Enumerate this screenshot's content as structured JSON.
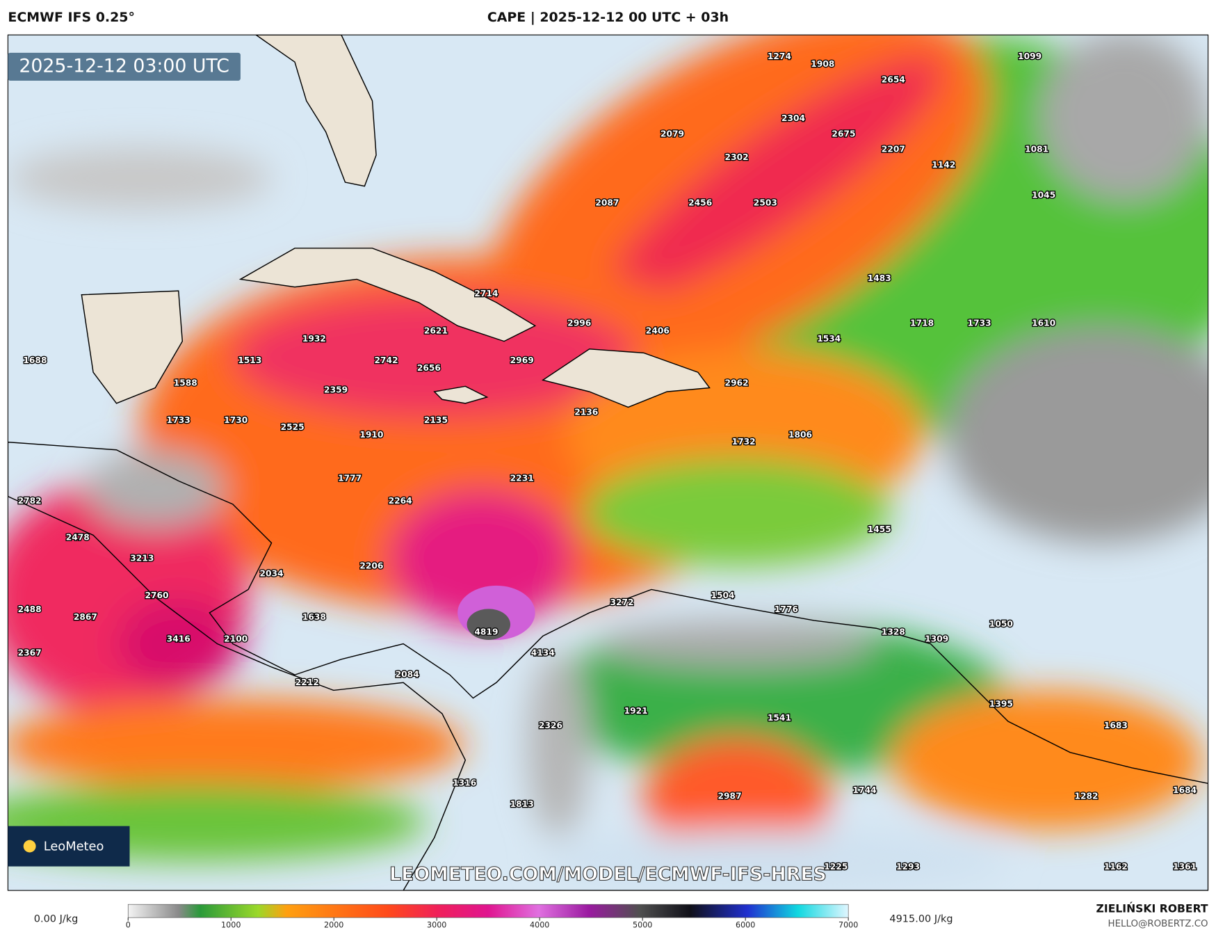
{
  "header": {
    "model": "ECMWF IFS 0.25°",
    "title": "CAPE | 2025-12-12 00 UTC + 03h"
  },
  "timestamp": "2025-12-12 03:00 UTC",
  "cape_labels": [
    1274,
    1908,
    1099,
    2654,
    2304,
    2079,
    2675,
    2302,
    2207,
    1081,
    1142,
    1045,
    2087,
    2456,
    2503,
    1483,
    2714,
    2996,
    1718,
    1733,
    1610,
    2621,
    2406,
    1932,
    1534,
    1688,
    1513,
    2742,
    2656,
    2969,
    1588,
    2359,
    2962,
    2136,
    1733,
    1730,
    2525,
    2135,
    1910,
    1732,
    1806,
    1777,
    2231,
    2782,
    2264,
    1455,
    2478,
    3213,
    2206,
    2034,
    2760,
    1504,
    3272,
    2488,
    1776,
    2867,
    1638,
    1050,
    4819,
    1328,
    3416,
    2100,
    1309,
    2367,
    4134,
    2212,
    2084,
    1395,
    1921,
    1541,
    2326,
    1683,
    2987,
    1744,
    1282,
    1684,
    1316,
    1813,
    1225,
    1293,
    1162,
    1361
  ],
  "watermark": "LEOMETEO.COM/MODEL/ECMWF-IFS-HRES",
  "logo": "LeoMeteo",
  "colorbar": {
    "min_label": "0.00 J/kg",
    "max_label": "4915.00 J/kg",
    "ticks": [
      0,
      1000,
      2000,
      3000,
      4000,
      5000,
      6000,
      7000
    ]
  },
  "footer": {
    "author": "ZIELIŃSKI ROBERT",
    "email": "HELLO@ROBERTZ.CO"
  }
}
